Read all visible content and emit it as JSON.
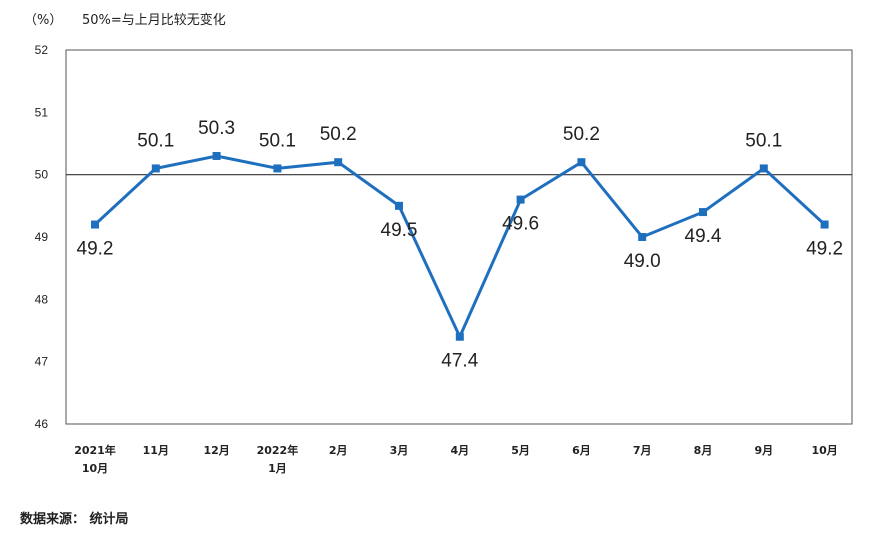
{
  "header": {
    "unit": "（%）",
    "note": "50%=与上月比较无变化"
  },
  "source": "数据来源： 统计局",
  "chart_data": {
    "type": "line",
    "categories": [
      "2021年\n10月",
      "11月",
      "12月",
      "2022年\n1月",
      "2月",
      "3月",
      "4月",
      "5月",
      "6月",
      "7月",
      "8月",
      "9月",
      "10月"
    ],
    "values": [
      49.2,
      50.1,
      50.3,
      50.1,
      50.2,
      49.5,
      47.4,
      49.6,
      50.2,
      49.0,
      49.4,
      50.1,
      49.2
    ],
    "data_labels": [
      "49.2",
      "50.1",
      "50.3",
      "50.1",
      "50.2",
      "49.5",
      "47.4",
      "49.6",
      "50.2",
      "49.0",
      "49.4",
      "50.1",
      "49.2"
    ],
    "label_positions": [
      "below",
      "above",
      "above",
      "above",
      "above",
      "below",
      "below",
      "below",
      "above",
      "below",
      "below",
      "above",
      "below"
    ],
    "ylim": [
      46,
      52
    ],
    "yticks": [
      46,
      47,
      48,
      49,
      50,
      51,
      52
    ],
    "reference_line": 50,
    "grid": false,
    "line_color": "#1f6fbf",
    "marker": "square"
  }
}
